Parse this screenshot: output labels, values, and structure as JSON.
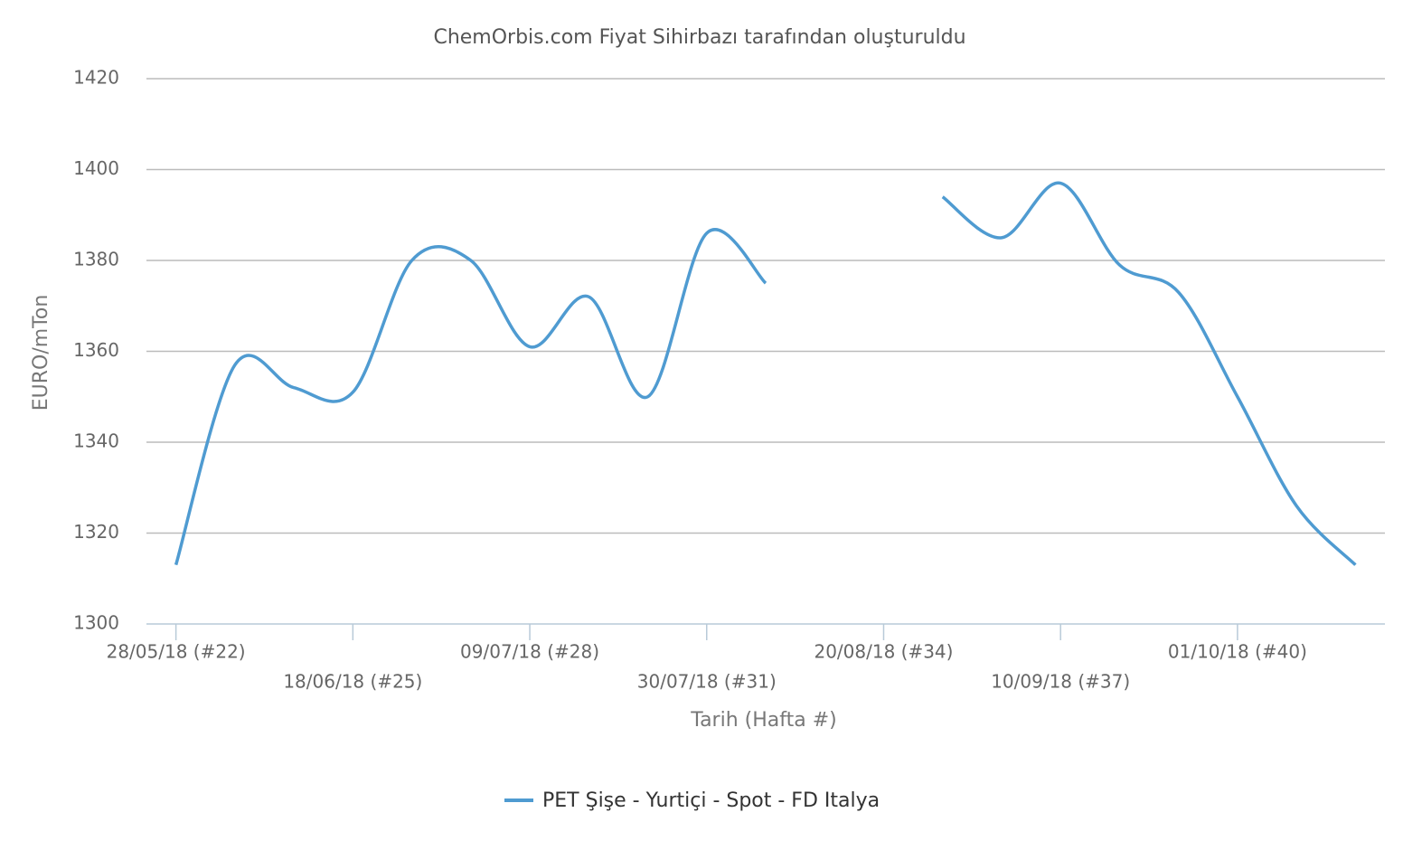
{
  "chart_data": {
    "type": "line",
    "title": "ChemOrbis.com Fiyat Sihirbazı tarafından oluşturuldu",
    "x_label": "Tarih (Hafta #)",
    "y_label": "EURO/mTon",
    "categories": [
      "28/05/18 (#22)",
      null,
      null,
      "18/06/18 (#25)",
      null,
      null,
      "09/07/18 (#28)",
      null,
      null,
      "30/07/18 (#31)",
      null,
      null,
      "20/08/18 (#34)",
      null,
      null,
      "10/09/18 (#37)",
      null,
      null,
      "01/10/18 (#40)",
      null,
      null
    ],
    "series": [
      {
        "name": "PET Şişe - Yurtiçi - Spot - FD Italya",
        "color": "#4f9bd1",
        "values": [
          1313,
          1357,
          1352,
          1351,
          1380,
          1380,
          1361,
          1372,
          1350,
          1386,
          1375,
          null,
          null,
          1394,
          1385,
          1397,
          1379,
          1373,
          1350,
          1326,
          1313
        ]
      }
    ],
    "ylim": [
      1300,
      1420
    ],
    "yticks": [
      1300,
      1320,
      1340,
      1360,
      1380,
      1400,
      1420
    ],
    "grid": true,
    "legend": "bottom"
  }
}
